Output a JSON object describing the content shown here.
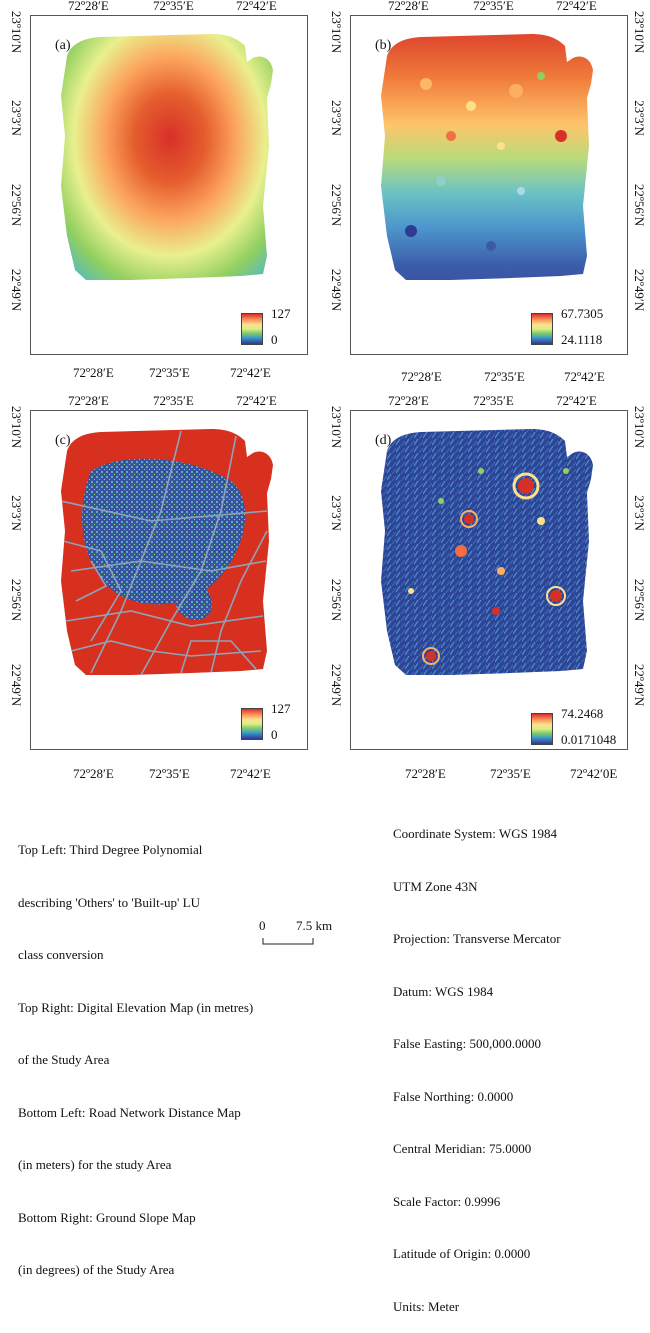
{
  "lon_ticks_top": [
    "72º28′E",
    "72º35′E",
    "72º42′E"
  ],
  "lon_ticks_bottom": [
    "72º28′E",
    "72º35′E",
    "72º42′E"
  ],
  "lon_ticks_bottom_d": [
    "72º28′E",
    "72º35′E",
    "72º42′0E"
  ],
  "lat_ticks": [
    "23º10′N",
    "23º3′N",
    "22º56′N",
    "22º49′N"
  ],
  "panels": {
    "a": {
      "label": "(a)",
      "legend_max": "127",
      "legend_min": "0"
    },
    "b": {
      "label": "(b)",
      "legend_max": "67.7305",
      "legend_min": "24.1118"
    },
    "c": {
      "label": "(c)",
      "legend_max": "127",
      "legend_min": "0"
    },
    "d": {
      "label": "(d)",
      "legend_max": "74.2468",
      "legend_min": "0.0171048"
    }
  },
  "colors": {
    "high": "#d73027",
    "mid": "#fee08b",
    "low": "#313695",
    "road": "#8fa3b8"
  },
  "caption_left": [
    "Top Left: Third Degree Polynomial",
    "describing 'Others' to 'Built-up' LU",
    "class conversion",
    "Top Right: Digital Elevation Map (in metres)",
    "of the Study Area",
    "Bottom Left: Road Network Distance Map",
    "(in meters) for the study Area",
    "Bottom Right: Ground Slope Map",
    "(in degrees) of the Study Area"
  ],
  "caption_right": [
    "Coordinate System: WGS 1984",
    "UTM Zone 43N",
    "Projection: Transverse Mercator",
    "Datum: WGS 1984",
    "False Easting: 500,000.0000",
    "False Northing: 0.0000",
    "Central Meridian: 75.0000",
    "Scale Factor: 0.9996",
    "Latitude of Origin: 0.0000",
    "Units: Meter"
  ],
  "scale": {
    "start": "0",
    "end": "7.5 km"
  }
}
